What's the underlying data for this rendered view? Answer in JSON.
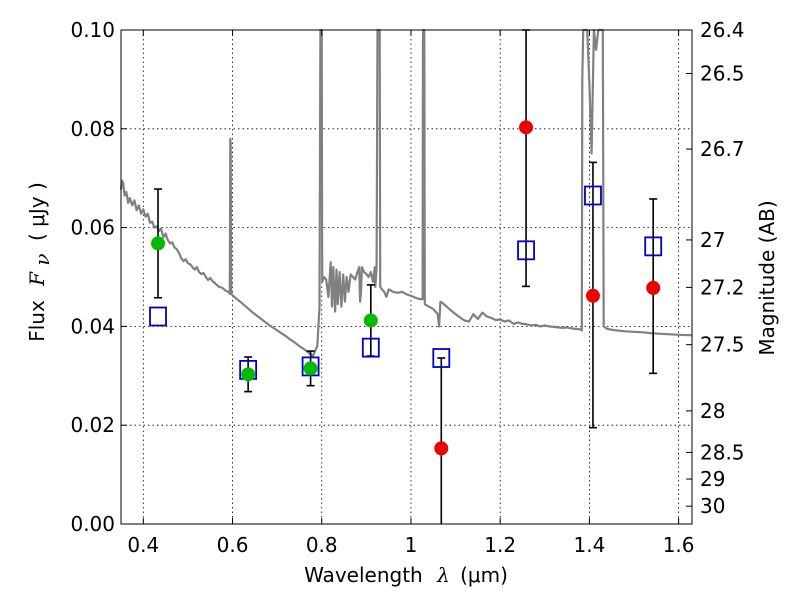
{
  "chart_data": {
    "type": "scatter",
    "xlabel": {
      "main": "Wavelength",
      "symbol": "λ",
      "unit": "(μm)"
    },
    "ylabel": {
      "main": "Flux",
      "symbol": "F",
      "subscript": "ν",
      "unit": "( μJy )"
    },
    "y2label": "Magnitude (AB)",
    "xlim": [
      0.35,
      1.63
    ],
    "ylim": [
      0.0,
      0.1
    ],
    "grid": true,
    "x_ticks": [
      {
        "v": 0.4,
        "label": "0.4"
      },
      {
        "v": 0.6,
        "label": "0.6"
      },
      {
        "v": 0.8,
        "label": "0.8"
      },
      {
        "v": 1.0,
        "label": "1"
      },
      {
        "v": 1.2,
        "label": "1.2"
      },
      {
        "v": 1.4,
        "label": "1.4"
      },
      {
        "v": 1.6,
        "label": "1.6"
      }
    ],
    "y_ticks": [
      {
        "v": 0.0,
        "label": "0.00"
      },
      {
        "v": 0.02,
        "label": "0.02"
      },
      {
        "v": 0.04,
        "label": "0.04"
      },
      {
        "v": 0.06,
        "label": "0.06"
      },
      {
        "v": 0.08,
        "label": "0.08"
      },
      {
        "v": 0.1,
        "label": "0.10"
      }
    ],
    "y2_ticks": [
      {
        "flux": 0.1,
        "label": "26.4"
      },
      {
        "flux": 0.0912,
        "label": "26.5"
      },
      {
        "flux": 0.0759,
        "label": "26.7"
      },
      {
        "flux": 0.0575,
        "label": "27"
      },
      {
        "flux": 0.0479,
        "label": "27.2"
      },
      {
        "flux": 0.0363,
        "label": "27.5"
      },
      {
        "flux": 0.0229,
        "label": "28"
      },
      {
        "flux": 0.0145,
        "label": "28.5"
      },
      {
        "flux": 0.0091,
        "label": "29"
      },
      {
        "flux": 0.0036,
        "label": "30"
      }
    ],
    "colors": {
      "model": "#808080",
      "detection": "#00bb00",
      "nondetection": "#ee0000",
      "model_point": "#0000cc",
      "errorbar": "#000000",
      "grid": "#000000"
    },
    "model_sed": [
      [
        0.35,
        0.0677
      ],
      [
        0.352,
        0.0695
      ],
      [
        0.355,
        0.069
      ],
      [
        0.358,
        0.0665
      ],
      [
        0.362,
        0.0672
      ],
      [
        0.366,
        0.065
      ],
      [
        0.37,
        0.066
      ],
      [
        0.375,
        0.0645
      ],
      [
        0.38,
        0.0655
      ],
      [
        0.385,
        0.0635
      ],
      [
        0.39,
        0.0645
      ],
      [
        0.395,
        0.0628
      ],
      [
        0.4,
        0.0637
      ],
      [
        0.405,
        0.0622
      ],
      [
        0.41,
        0.0628
      ],
      [
        0.415,
        0.061
      ],
      [
        0.42,
        0.0612
      ],
      [
        0.425,
        0.06
      ],
      [
        0.43,
        0.0603
      ],
      [
        0.435,
        0.0593
      ],
      [
        0.44,
        0.0598
      ],
      [
        0.445,
        0.058
      ],
      [
        0.45,
        0.0588
      ],
      [
        0.455,
        0.0575
      ],
      [
        0.46,
        0.0568
      ],
      [
        0.465,
        0.057
      ],
      [
        0.47,
        0.056
      ],
      [
        0.475,
        0.0556
      ],
      [
        0.48,
        0.0549
      ],
      [
        0.485,
        0.0538
      ],
      [
        0.49,
        0.0532
      ],
      [
        0.495,
        0.0536
      ],
      [
        0.5,
        0.0528
      ],
      [
        0.505,
        0.0526
      ],
      [
        0.51,
        0.052
      ],
      [
        0.515,
        0.0515
      ],
      [
        0.52,
        0.052
      ],
      [
        0.525,
        0.051
      ],
      [
        0.53,
        0.0506
      ],
      [
        0.535,
        0.0508
      ],
      [
        0.54,
        0.05
      ],
      [
        0.545,
        0.0494
      ],
      [
        0.55,
        0.0498
      ],
      [
        0.555,
        0.0492
      ],
      [
        0.56,
        0.0488
      ],
      [
        0.565,
        0.0484
      ],
      [
        0.57,
        0.048
      ],
      [
        0.575,
        0.0479
      ],
      [
        0.58,
        0.0476
      ],
      [
        0.585,
        0.0472
      ],
      [
        0.59,
        0.047
      ],
      [
        0.594,
        0.0466
      ],
      [
        0.595,
        0.078
      ],
      [
        0.596,
        0.077
      ],
      [
        0.597,
        0.0466
      ],
      [
        0.6,
        0.0463
      ],
      [
        0.61,
        0.0455
      ],
      [
        0.62,
        0.0448
      ],
      [
        0.63,
        0.044
      ],
      [
        0.64,
        0.0432
      ],
      [
        0.65,
        0.0425
      ],
      [
        0.66,
        0.0418
      ],
      [
        0.67,
        0.0411
      ],
      [
        0.68,
        0.0404
      ],
      [
        0.69,
        0.0398
      ],
      [
        0.7,
        0.0392
      ],
      [
        0.71,
        0.0386
      ],
      [
        0.72,
        0.038
      ],
      [
        0.73,
        0.0373
      ],
      [
        0.74,
        0.0367
      ],
      [
        0.75,
        0.036
      ],
      [
        0.76,
        0.0354
      ],
      [
        0.77,
        0.0347
      ],
      [
        0.78,
        0.034
      ],
      [
        0.79,
        0.036
      ],
      [
        0.795,
        0.044
      ],
      [
        0.797,
        0.1
      ],
      [
        0.8,
        0.1
      ],
      [
        0.801,
        0.049
      ],
      [
        0.805,
        0.05
      ],
      [
        0.81,
        0.0495
      ],
      [
        0.815,
        0.046
      ],
      [
        0.82,
        0.053
      ],
      [
        0.823,
        0.044
      ],
      [
        0.826,
        0.052
      ],
      [
        0.83,
        0.043
      ],
      [
        0.833,
        0.0515
      ],
      [
        0.836,
        0.0445
      ],
      [
        0.84,
        0.051
      ],
      [
        0.844,
        0.044
      ],
      [
        0.848,
        0.0505
      ],
      [
        0.852,
        0.045
      ],
      [
        0.856,
        0.05
      ],
      [
        0.86,
        0.047
      ],
      [
        0.865,
        0.0505
      ],
      [
        0.87,
        0.05
      ],
      [
        0.875,
        0.0495
      ],
      [
        0.88,
        0.051
      ],
      [
        0.884,
        0.052
      ],
      [
        0.886,
        0.045
      ],
      [
        0.888,
        0.047
      ],
      [
        0.89,
        0.052
      ],
      [
        0.895,
        0.051
      ],
      [
        0.9,
        0.0506
      ],
      [
        0.905,
        0.05
      ],
      [
        0.91,
        0.051
      ],
      [
        0.915,
        0.049
      ],
      [
        0.919,
        0.052
      ],
      [
        0.92,
        0.048
      ],
      [
        0.923,
        0.052
      ],
      [
        0.925,
        0.1
      ],
      [
        0.93,
        0.1
      ],
      [
        0.931,
        0.048
      ],
      [
        0.935,
        0.0475
      ],
      [
        0.94,
        0.047
      ],
      [
        0.945,
        0.046
      ],
      [
        0.95,
        0.0475
      ],
      [
        0.96,
        0.047
      ],
      [
        0.97,
        0.0468
      ],
      [
        0.98,
        0.047
      ],
      [
        0.99,
        0.0465
      ],
      [
        1.0,
        0.0462
      ],
      [
        1.01,
        0.0458
      ],
      [
        1.02,
        0.0455
      ],
      [
        1.026,
        0.0455
      ],
      [
        1.027,
        0.1
      ],
      [
        1.03,
        0.1
      ],
      [
        1.031,
        0.0445
      ],
      [
        1.04,
        0.044
      ],
      [
        1.05,
        0.0435
      ],
      [
        1.055,
        0.043
      ],
      [
        1.06,
        0.0425
      ],
      [
        1.063,
        0.04
      ],
      [
        1.066,
        0.045
      ],
      [
        1.07,
        0.0448
      ],
      [
        1.08,
        0.044
      ],
      [
        1.09,
        0.0432
      ],
      [
        1.1,
        0.0425
      ],
      [
        1.11,
        0.0418
      ],
      [
        1.12,
        0.0412
      ],
      [
        1.13,
        0.041
      ],
      [
        1.14,
        0.0425
      ],
      [
        1.15,
        0.0415
      ],
      [
        1.16,
        0.0428
      ],
      [
        1.17,
        0.042
      ],
      [
        1.18,
        0.0417
      ],
      [
        1.19,
        0.0413
      ],
      [
        1.2,
        0.0414
      ],
      [
        1.21,
        0.041
      ],
      [
        1.22,
        0.0412
      ],
      [
        1.23,
        0.0405
      ],
      [
        1.24,
        0.0408
      ],
      [
        1.25,
        0.0405
      ],
      [
        1.26,
        0.0404
      ],
      [
        1.27,
        0.0402
      ],
      [
        1.28,
        0.0403
      ],
      [
        1.29,
        0.04
      ],
      [
        1.3,
        0.0402
      ],
      [
        1.31,
        0.04
      ],
      [
        1.32,
        0.0399
      ],
      [
        1.33,
        0.0398
      ],
      [
        1.34,
        0.0397
      ],
      [
        1.35,
        0.0398
      ],
      [
        1.36,
        0.0396
      ],
      [
        1.37,
        0.0395
      ],
      [
        1.38,
        0.0394
      ],
      [
        1.383,
        0.0392
      ],
      [
        1.384,
        0.09
      ],
      [
        1.386,
        0.1
      ],
      [
        1.395,
        0.1
      ],
      [
        1.4,
        0.089
      ],
      [
        1.405,
        0.075
      ],
      [
        1.41,
        0.1
      ],
      [
        1.415,
        0.096
      ],
      [
        1.42,
        0.1
      ],
      [
        1.425,
        0.1
      ],
      [
        1.43,
        0.1
      ],
      [
        1.432,
        0.04
      ],
      [
        1.44,
        0.0395
      ],
      [
        1.46,
        0.0392
      ],
      [
        1.48,
        0.039
      ],
      [
        1.5,
        0.0389
      ],
      [
        1.52,
        0.0388
      ],
      [
        1.54,
        0.0386
      ],
      [
        1.56,
        0.0385
      ],
      [
        1.58,
        0.0384
      ],
      [
        1.6,
        0.0383
      ],
      [
        1.63,
        0.0382
      ]
    ],
    "detections": [
      {
        "x": 0.433,
        "y": 0.0568,
        "err_lo": 0.011,
        "err_hi": 0.011
      },
      {
        "x": 0.635,
        "y": 0.0303,
        "err_lo": 0.0035,
        "err_hi": 0.0035
      },
      {
        "x": 0.775,
        "y": 0.0315,
        "err_lo": 0.0035,
        "err_hi": 0.0035
      },
      {
        "x": 0.91,
        "y": 0.0412,
        "err_lo": 0.0072,
        "err_hi": 0.0072
      }
    ],
    "nondetections": [
      {
        "x": 1.068,
        "y": 0.0153,
        "err_lo": 0.0153,
        "err_hi": 0.0183
      },
      {
        "x": 1.258,
        "y": 0.0803,
        "err_lo": 0.0322,
        "err_hi": 0.0197
      },
      {
        "x": 1.408,
        "y": 0.0462,
        "err_lo": 0.0267,
        "err_hi": 0.027
      },
      {
        "x": 1.543,
        "y": 0.0478,
        "err_lo": 0.0173,
        "err_hi": 0.018
      }
    ],
    "model_photometry": [
      {
        "x": 0.433,
        "y": 0.042
      },
      {
        "x": 0.635,
        "y": 0.0312
      },
      {
        "x": 0.775,
        "y": 0.0319
      },
      {
        "x": 0.91,
        "y": 0.0357
      },
      {
        "x": 1.068,
        "y": 0.0336
      },
      {
        "x": 1.258,
        "y": 0.0554
      },
      {
        "x": 1.408,
        "y": 0.0665
      },
      {
        "x": 1.543,
        "y": 0.0562
      }
    ]
  }
}
